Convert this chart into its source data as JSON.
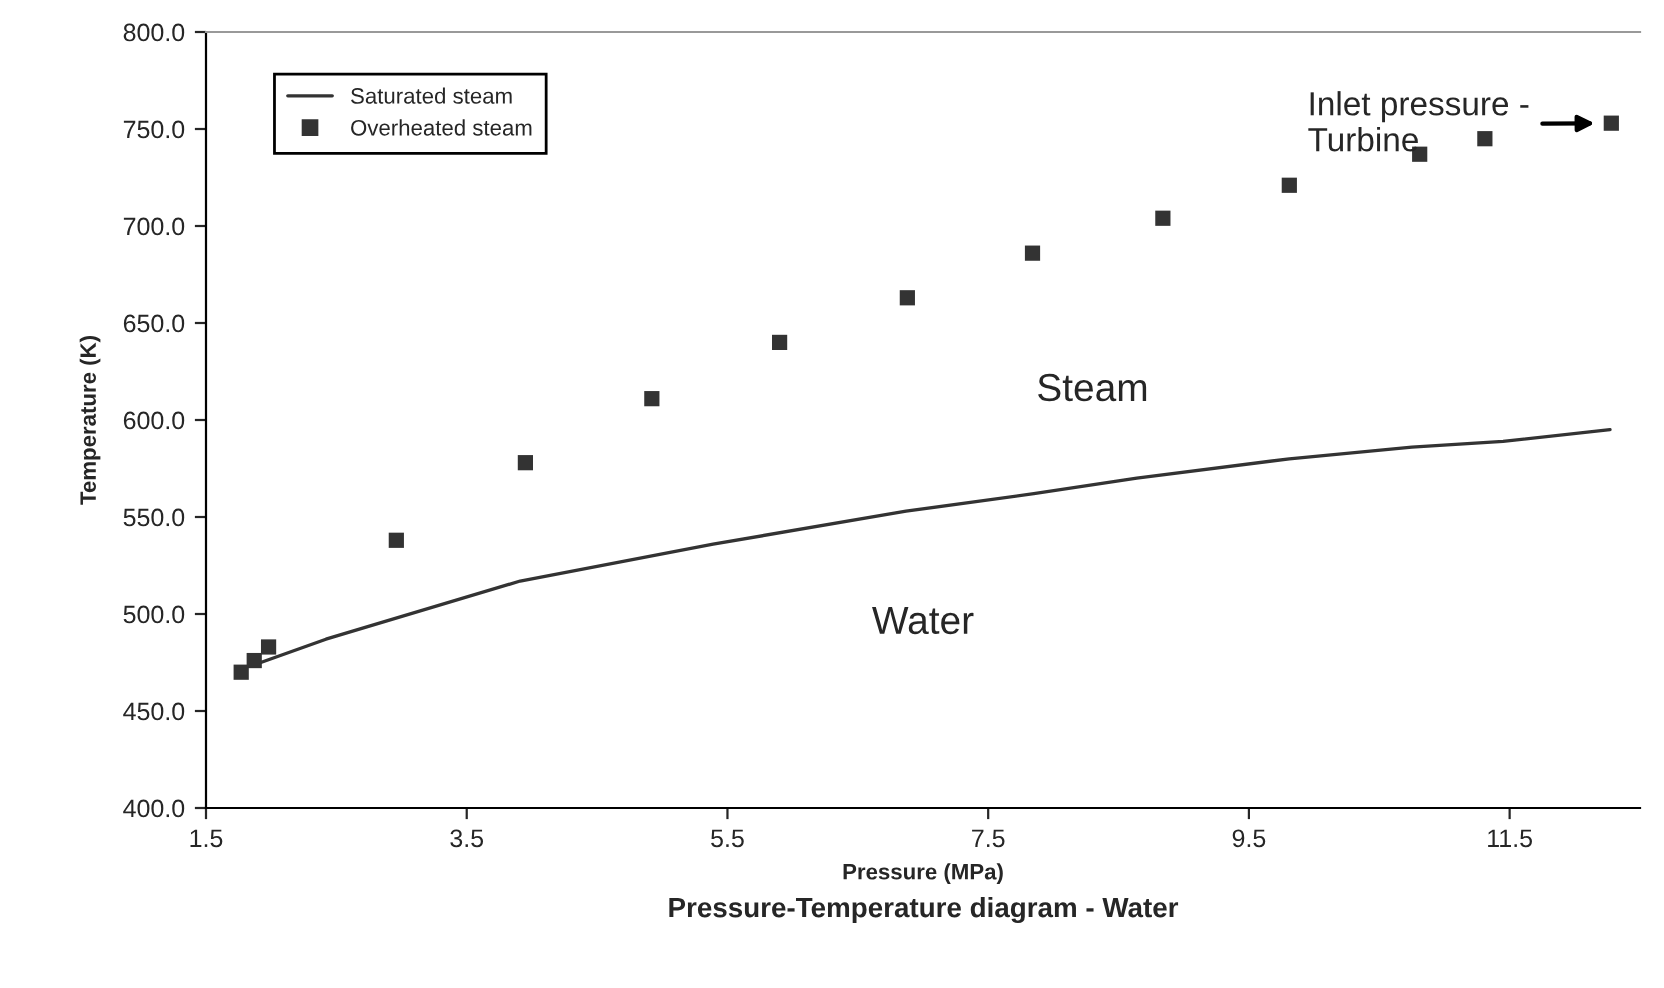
{
  "chart_data": {
    "type": "line",
    "title": "Pressure-Temperature diagram - Water",
    "xlabel": "Pressure (MPa)",
    "ylabel": "Temperature (K)",
    "xlim": [
      1.5,
      12.5
    ],
    "xticks": [
      1.5,
      3.5,
      5.5,
      7.5,
      9.5,
      11.5
    ],
    "ylim": [
      400,
      800
    ],
    "yticks": [
      {
        "value": 400,
        "label": "400.0"
      },
      {
        "value": 450,
        "label": "450.0"
      },
      {
        "value": 500,
        "label": "500.0"
      },
      {
        "value": 550,
        "label": "550.0"
      },
      {
        "value": 600,
        "label": "600.0"
      },
      {
        "value": 650,
        "label": "650.0"
      },
      {
        "value": 700,
        "label": "700.0"
      },
      {
        "value": 750,
        "label": "750.0"
      },
      {
        "value": 800,
        "label": "800.0"
      }
    ],
    "grid": false,
    "legend": "top left",
    "series": [
      {
        "name": "Saturated steam",
        "color": "#333333",
        "marker": "none",
        "line_style": "solid",
        "x": [
          1.92,
          2.42,
          3.91,
          5.39,
          6.87,
          7.85,
          8.64,
          9.81,
          10.75,
          11.45,
          12.27
        ],
        "values": [
          475,
          487,
          517,
          536,
          553,
          562,
          570,
          580,
          586,
          589,
          595
        ]
      },
      {
        "name": "Overheated steam",
        "type": "scatter",
        "color": "#333333",
        "marker": "square",
        "x": [
          1.77,
          1.87,
          1.98,
          2.96,
          3.95,
          4.92,
          5.9,
          6.88,
          7.84,
          8.84,
          9.81,
          10.81,
          11.31,
          12.28
        ],
        "values": [
          470,
          476,
          483,
          538,
          578,
          611,
          640,
          663,
          686,
          704,
          721,
          737,
          745,
          753
        ]
      }
    ],
    "annotations": [
      {
        "text": "Inlet pressure -\nTurbine",
        "x": 12.28,
        "y": 753
      },
      "Steam",
      "Water"
    ]
  }
}
